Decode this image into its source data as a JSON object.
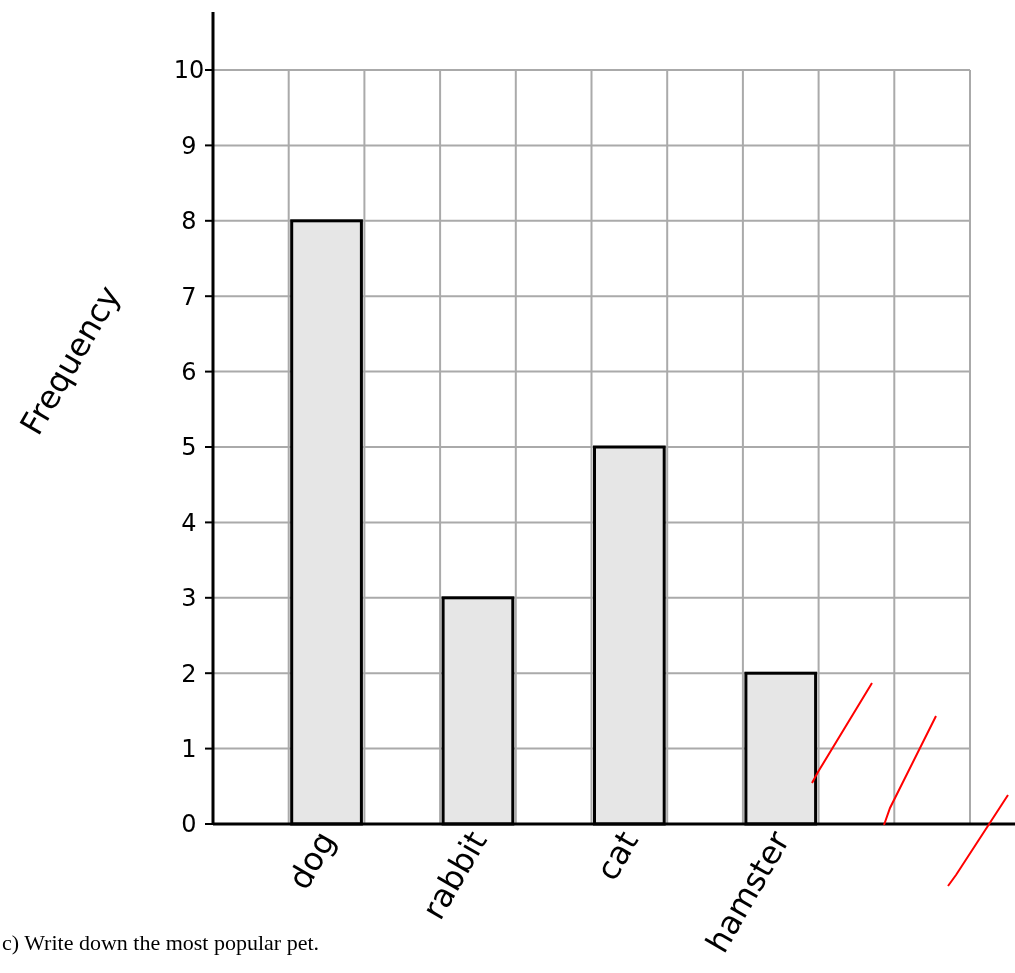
{
  "chart_data": {
    "type": "bar",
    "ylabel": "Frequency",
    "categories": [
      null,
      "dog",
      null,
      "rabbit",
      null,
      "cat",
      null,
      "hamster",
      null,
      null
    ],
    "values": [
      null,
      8,
      null,
      3,
      null,
      5,
      null,
      2,
      null,
      null
    ],
    "color": "#e6e6e6",
    "ylim": [
      0,
      10
    ],
    "yticks": [
      0,
      1,
      2,
      3,
      4,
      5,
      6,
      7,
      8,
      9,
      10
    ],
    "grid": true,
    "annotations": [
      "c)  Write down the most popular pet."
    ]
  }
}
